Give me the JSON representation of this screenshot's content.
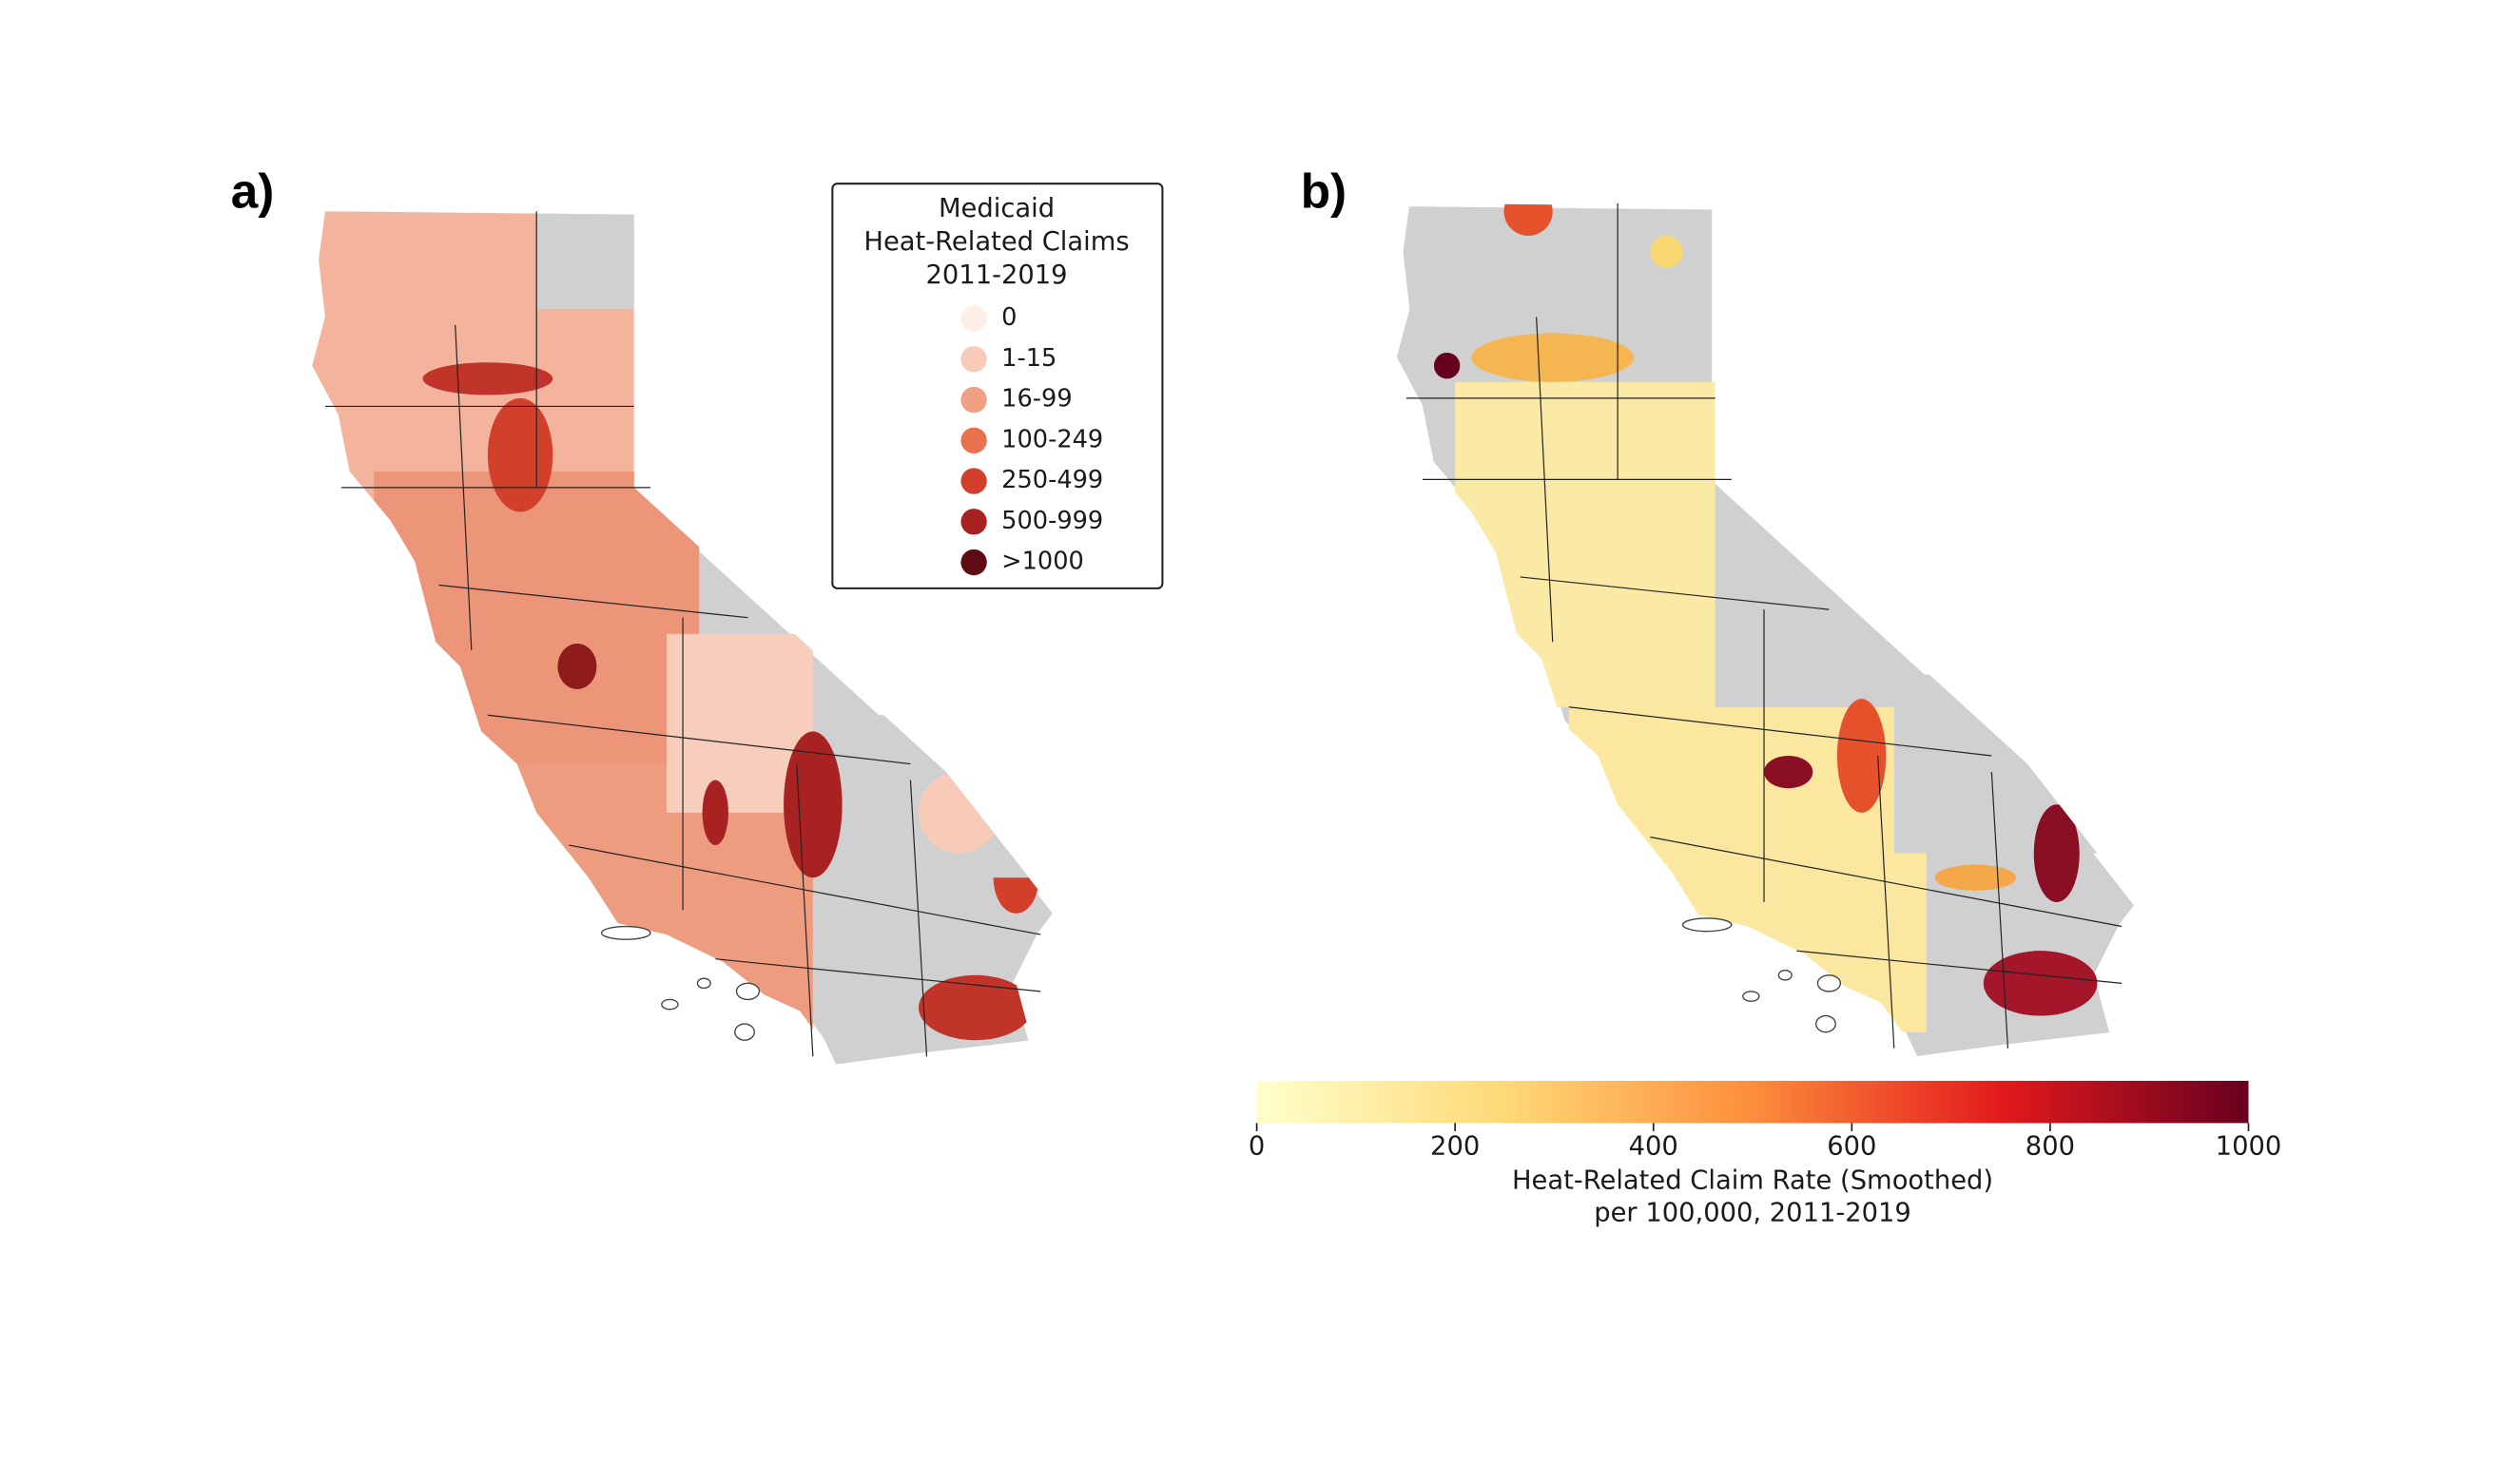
{
  "panels": [
    {
      "label": "a)",
      "legend": {
        "title": [
          "Medicaid",
          "Heat-Related Claims",
          "2011-2019"
        ],
        "entries": [
          {
            "label": "0",
            "color": "#fdeee6"
          },
          {
            "label": "1-15",
            "color": "#f8cbb8"
          },
          {
            "label": "16-99",
            "color": "#f0a183"
          },
          {
            "label": "100-249",
            "color": "#e8714f"
          },
          {
            "label": "250-499",
            "color": "#d2402c"
          },
          {
            "label": "500-999",
            "color": "#a82222"
          },
          {
            "label": ">1000",
            "color": "#5e0b14"
          }
        ]
      }
    },
    {
      "label": "b)",
      "colorbar": {
        "lim": [
          0,
          1000
        ],
        "ticks": [
          0,
          200,
          400,
          600,
          800,
          1000
        ],
        "colors": [
          "#ffffcc",
          "#fed976",
          "#fd8d3c",
          "#e31a1c",
          "#67001f"
        ],
        "label": [
          "Heat-Related Claim Rate (Smoothed)",
          "per 100,000, 2011-2019"
        ]
      }
    }
  ]
}
